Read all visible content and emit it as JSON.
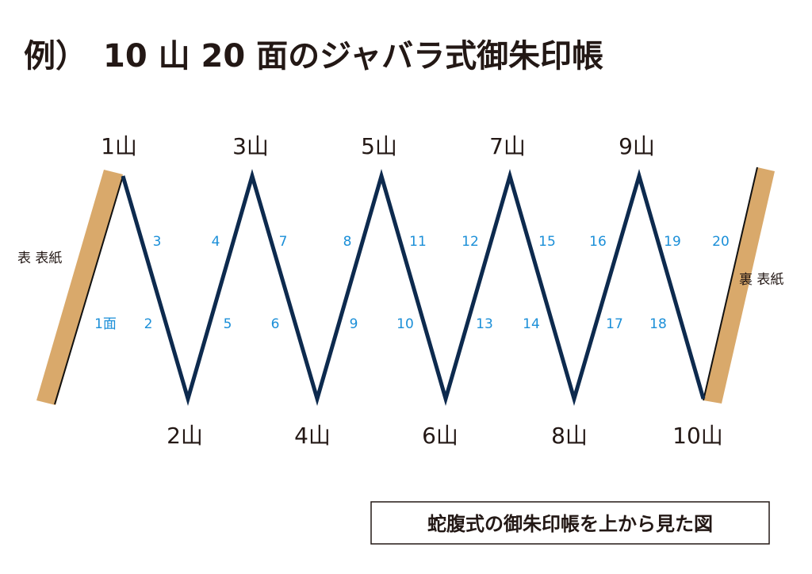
{
  "title": "例）　10 山 20 面のジャバラ式御朱印帳",
  "colors": {
    "fold_line": "#0d2a4e",
    "cover": "#d9a96b",
    "page_number": "#1b8fd8",
    "text": "#231815"
  },
  "covers": {
    "front": "表 表紙",
    "back": "裏 表紙"
  },
  "mountains_top": [
    "1山",
    "3山",
    "5山",
    "7山",
    "9山"
  ],
  "mountains_bottom": [
    "2山",
    "4山",
    "6山",
    "8山",
    "10山"
  ],
  "pages_upper": [
    "3",
    "4",
    "7",
    "8",
    "11",
    "12",
    "15",
    "16",
    "19",
    "20"
  ],
  "pages_lower": [
    "1面",
    "2",
    "5",
    "6",
    "9",
    "10",
    "13",
    "14",
    "17",
    "18"
  ],
  "caption": "蛇腹式の御朱印帳を上から見た図"
}
